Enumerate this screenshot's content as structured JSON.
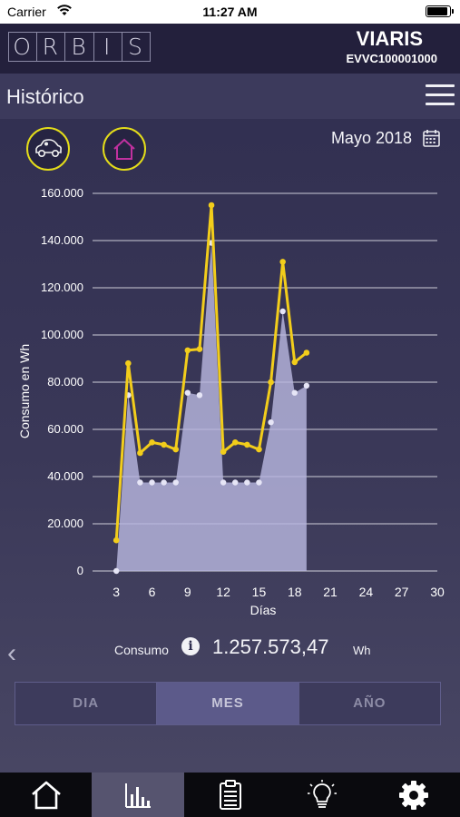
{
  "status_bar": {
    "carrier": "Carrier",
    "time": "11:27 AM"
  },
  "brand": {
    "logo_letters": [
      "O",
      "R",
      "B",
      "I",
      "S"
    ],
    "device_name": "VIARIS",
    "device_id": "EVVC100001000"
  },
  "header": {
    "title": "Histórico",
    "menu_icon": "hamburger-menu-icon"
  },
  "filters": {
    "car_icon": "car-icon",
    "home_icon": "home-icon",
    "period_label": "Mayo 2018",
    "calendar_icon": "calendar-icon"
  },
  "chart_data": {
    "type": "line",
    "xlabel": "Días",
    "ylabel": "Consumo en Wh",
    "xlim": [
      1,
      30
    ],
    "ylim": [
      0,
      160000
    ],
    "x_ticks": [
      3,
      6,
      9,
      12,
      15,
      18,
      21,
      24,
      27,
      30
    ],
    "y_ticks": [
      "0",
      "20.000",
      "40.000",
      "60.000",
      "80.000",
      "100.000",
      "120.000",
      "140.000",
      "160.000"
    ],
    "y_tick_values": [
      0,
      20000,
      40000,
      60000,
      80000,
      100000,
      120000,
      140000,
      160000
    ],
    "grid": "horizontal",
    "series": [
      {
        "color": "#f2cd1b",
        "style": "line-with-points",
        "x": [
          3,
          4,
          5,
          6,
          7,
          8,
          9,
          10,
          11,
          12,
          13,
          14,
          15,
          16,
          17,
          18,
          19
        ],
        "values": [
          13000,
          88000,
          50000,
          54500,
          53500,
          51500,
          93500,
          94000,
          155000,
          50500,
          54500,
          53500,
          51500,
          80000,
          131000,
          88500,
          92500
        ]
      },
      {
        "color": "#b7b6de",
        "style": "area-with-points",
        "x": [
          3,
          4,
          5,
          6,
          7,
          8,
          9,
          10,
          11,
          12,
          13,
          14,
          15,
          16,
          17,
          18,
          19
        ],
        "values": [
          0,
          74500,
          37500,
          37500,
          37500,
          37500,
          75500,
          74500,
          139000,
          37500,
          37500,
          37500,
          37500,
          63000,
          110000,
          75500,
          78500
        ]
      }
    ]
  },
  "summary": {
    "label": "Consumo",
    "value": "1.257.573,47",
    "unit": "Wh",
    "info_icon": "info-icon",
    "back_icon": "chevron-left-icon"
  },
  "tabs": [
    {
      "label": "DIA",
      "active": false
    },
    {
      "label": "MES",
      "active": true
    },
    {
      "label": "AÑO",
      "active": false
    }
  ],
  "bottom_nav": [
    {
      "icon": "home-icon",
      "active": false
    },
    {
      "icon": "bar-chart-icon",
      "active": true
    },
    {
      "icon": "clipboard-icon",
      "active": false
    },
    {
      "icon": "lightbulb-icon",
      "active": false
    },
    {
      "icon": "gear-icon",
      "active": false
    }
  ]
}
